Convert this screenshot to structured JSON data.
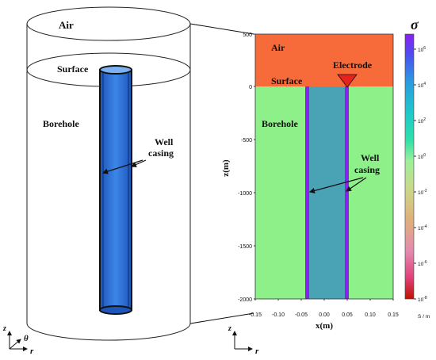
{
  "left_panel": {
    "air_label": "Air",
    "surface_label": "Surface",
    "borehole_label": "Borehole",
    "casing_label_line1": "Well",
    "casing_label_line2": "casing",
    "axis_z": "z",
    "axis_theta": "θ",
    "axis_r": "r"
  },
  "right_panel": {
    "air_label": "Air",
    "surface_label": "Surface",
    "electrode_label": "Electrode",
    "borehole_label": "Borehole",
    "casing_label_line1": "Well",
    "casing_label_line2": "casing",
    "xlabel": "x(m)",
    "ylabel": "z(m)",
    "x_ticks": [
      "-0.15",
      "-0.10",
      "-0.05",
      "0.00",
      "0.05",
      "0.10",
      "0.15"
    ],
    "z_ticks": [
      "500",
      "0",
      "-500",
      "-1000",
      "-1500",
      "-2000"
    ],
    "axis_z": "z",
    "axis_r": "r"
  },
  "colorbar": {
    "title": "σ",
    "unit": "S / m",
    "ticks": [
      {
        "base": "10",
        "exp": "6"
      },
      {
        "base": "10",
        "exp": "4"
      },
      {
        "base": "10",
        "exp": "2"
      },
      {
        "base": "10",
        "exp": "0"
      },
      {
        "base": "10",
        "exp": "-2"
      },
      {
        "base": "10",
        "exp": "-4"
      },
      {
        "base": "10",
        "exp": "-6"
      },
      {
        "base": "10",
        "exp": "-8"
      }
    ]
  },
  "colors": {
    "air": "#f76b3b",
    "ground": "#8df089",
    "borehole": "#4aa3b5",
    "casing": "#8b21f0",
    "electrode": "#e8211a",
    "pipe": "#2a6fd1"
  }
}
